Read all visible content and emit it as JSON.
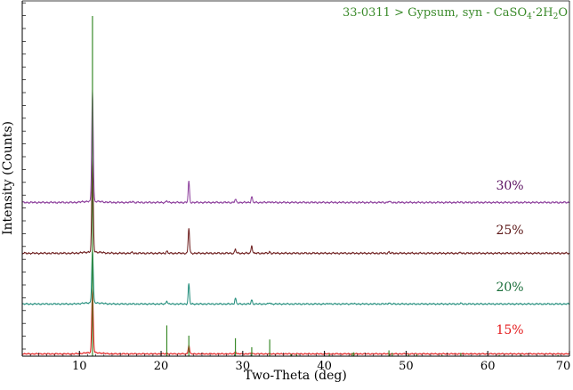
{
  "chart_data": {
    "type": "line",
    "xlabel": "Two-Theta (deg)",
    "ylabel": "Intensity (Counts)",
    "xlim": [
      3,
      70
    ],
    "x_ticks": [
      10,
      20,
      30,
      40,
      50,
      60,
      70
    ],
    "y_ticks_labeled": false,
    "grid": false,
    "reference": {
      "label_prefix": "33-0311 > Gypsum, syn - CaSO",
      "label_sub1": "4",
      "label_mid": "·2H",
      "label_sub2": "2",
      "label_suffix": "O",
      "color": "#3a8a2a",
      "peaks": [
        [
          11.6,
          100
        ],
        [
          20.7,
          48
        ],
        [
          23.4,
          32
        ],
        [
          29.1,
          28
        ],
        [
          31.1,
          14
        ],
        [
          33.3,
          26
        ],
        [
          35.9,
          3
        ],
        [
          36.6,
          3
        ],
        [
          40.6,
          4
        ],
        [
          43.4,
          5
        ],
        [
          43.6,
          6
        ],
        [
          47.9,
          9
        ],
        [
          48.3,
          5
        ],
        [
          50.3,
          3
        ],
        [
          51.3,
          3
        ],
        [
          54.4,
          2
        ],
        [
          56.7,
          5
        ],
        [
          61.4,
          2
        ],
        [
          64.1,
          2
        ],
        [
          68.6,
          2
        ]
      ]
    },
    "series": [
      {
        "name": "15%",
        "color": "#e01010",
        "label_color": "#e41a1c",
        "peaks": [
          [
            11.6,
            100
          ],
          [
            23.4,
            14
          ],
          [
            29.1,
            4
          ],
          [
            31.1,
            2
          ],
          [
            20.7,
            1
          ]
        ]
      },
      {
        "name": "20%",
        "color": "#1c8a78",
        "label_color": "#1a6e3a",
        "peaks": [
          [
            11.6,
            80
          ],
          [
            20.7,
            5
          ],
          [
            23.4,
            30
          ],
          [
            29.1,
            9
          ],
          [
            31.1,
            6
          ],
          [
            33.3,
            2
          ],
          [
            40.6,
            1.2
          ],
          [
            43.4,
            1
          ],
          [
            47.9,
            2
          ],
          [
            56.7,
            1
          ]
        ]
      },
      {
        "name": "25%",
        "color": "#6b1a1a",
        "label_color": "#5a1414",
        "peaks": [
          [
            11.6,
            140
          ],
          [
            16.5,
            1.5
          ],
          [
            20.7,
            3
          ],
          [
            23.4,
            38
          ],
          [
            29.1,
            6
          ],
          [
            31.1,
            12
          ],
          [
            33.3,
            2
          ],
          [
            47.9,
            2
          ],
          [
            56.7,
            1
          ]
        ]
      },
      {
        "name": "30%",
        "color": "#8a3a9a",
        "label_color": "#5a1060",
        "peaks": [
          [
            11.6,
            170
          ],
          [
            16.5,
            2
          ],
          [
            20.7,
            2.5
          ],
          [
            23.4,
            32
          ],
          [
            29.1,
            5
          ],
          [
            31.1,
            9
          ],
          [
            33.3,
            1.5
          ],
          [
            47.9,
            2
          ],
          [
            56.7,
            1
          ]
        ]
      }
    ]
  }
}
